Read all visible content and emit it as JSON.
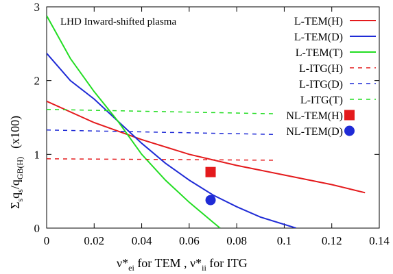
{
  "chart_data": {
    "type": "line",
    "annotation": "LHD Inward-shifted plasma",
    "xlabel": {
      "main": "ν*",
      "sub1": "ei",
      "mid": " for TEM ,  ν*",
      "sub2": "ii",
      "tail": " for ITG"
    },
    "ylabel": {
      "sigma": "Σ",
      "sub_s": "s",
      "q": "q",
      "sub_s2": "s",
      "slash": "/q",
      "sub_gb": "GB(H)",
      "factor": "(x100)"
    },
    "xlim": [
      0,
      0.14
    ],
    "ylim": [
      0,
      3
    ],
    "x_ticks": [
      "0",
      "0.02",
      "0.04",
      "0.06",
      "0.08",
      "0.1",
      "0.12",
      "0.14"
    ],
    "y_ticks": [
      "0",
      "1",
      "2",
      "3"
    ],
    "legend_position": "top-right",
    "series": [
      {
        "name": "L-TEM(H)",
        "style": "solid",
        "color": "#e41a1c",
        "points": [
          [
            0,
            1.72
          ],
          [
            0.02,
            1.43
          ],
          [
            0.04,
            1.2
          ],
          [
            0.06,
            1.0
          ],
          [
            0.08,
            0.85
          ],
          [
            0.1,
            0.72
          ],
          [
            0.12,
            0.59
          ],
          [
            0.134,
            0.48
          ]
        ]
      },
      {
        "name": "L-TEM(D)",
        "style": "solid",
        "color": "#1f2bd6",
        "points": [
          [
            0,
            2.37
          ],
          [
            0.01,
            2.0
          ],
          [
            0.02,
            1.75
          ],
          [
            0.03,
            1.45
          ],
          [
            0.04,
            1.15
          ],
          [
            0.05,
            0.88
          ],
          [
            0.06,
            0.65
          ],
          [
            0.07,
            0.45
          ],
          [
            0.08,
            0.29
          ],
          [
            0.09,
            0.15
          ],
          [
            0.105,
            0.0
          ]
        ]
      },
      {
        "name": "L-TEM(T)",
        "style": "solid",
        "color": "#22dd22",
        "points": [
          [
            0,
            2.88
          ],
          [
            0.01,
            2.3
          ],
          [
            0.02,
            1.85
          ],
          [
            0.03,
            1.45
          ],
          [
            0.04,
            1.0
          ],
          [
            0.05,
            0.65
          ],
          [
            0.06,
            0.35
          ],
          [
            0.07,
            0.08
          ],
          [
            0.073,
            0.0
          ]
        ]
      },
      {
        "name": "L-ITG(H)",
        "style": "dashed",
        "color": "#e41a1c",
        "points": [
          [
            0,
            0.94
          ],
          [
            0.096,
            0.92
          ]
        ]
      },
      {
        "name": "L-ITG(D)",
        "style": "dashed",
        "color": "#1f2bd6",
        "points": [
          [
            0,
            1.33
          ],
          [
            0.096,
            1.27
          ]
        ]
      },
      {
        "name": "L-ITG(T)",
        "style": "dashed",
        "color": "#22dd22",
        "points": [
          [
            0,
            1.61
          ],
          [
            0.096,
            1.55
          ]
        ]
      },
      {
        "name": "NL-TEM(H)",
        "style": "marker-square",
        "color": "#e41a1c",
        "points": [
          [
            0.069,
            0.76
          ]
        ]
      },
      {
        "name": "NL-TEM(D)",
        "style": "marker-circle",
        "color": "#1f2bd6",
        "points": [
          [
            0.069,
            0.38
          ]
        ]
      }
    ]
  }
}
